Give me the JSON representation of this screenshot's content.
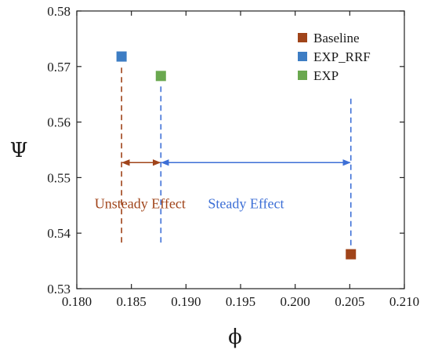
{
  "chart_data": {
    "type": "scatter",
    "xlabel": "ϕ",
    "ylabel": "Ψ",
    "xlim": [
      0.18,
      0.21
    ],
    "ylim": [
      0.53,
      0.58
    ],
    "xticks": [
      0.18,
      0.185,
      0.19,
      0.195,
      0.2,
      0.205,
      0.21
    ],
    "xtick_labels": [
      "0.180",
      "0.185",
      "0.190",
      "0.195",
      "0.200",
      "0.205",
      "0.210"
    ],
    "yticks": [
      0.53,
      0.54,
      0.55,
      0.56,
      0.57,
      0.58
    ],
    "ytick_labels": [
      "0.53",
      "0.54",
      "0.55",
      "0.56",
      "0.57",
      "0.58"
    ],
    "grid": false,
    "legend_position": "top-right",
    "series": [
      {
        "name": "Baseline",
        "color": "#a0441a",
        "points": [
          {
            "x": 0.2051,
            "y": 0.5362
          }
        ]
      },
      {
        "name": "EXP_RRF",
        "color": "#3d7dc4",
        "points": [
          {
            "x": 0.1841,
            "y": 0.5718
          }
        ]
      },
      {
        "name": "EXP",
        "color": "#6aa84f",
        "points": [
          {
            "x": 0.1877,
            "y": 0.5683
          }
        ]
      }
    ],
    "vertical_lines": [
      {
        "x": 0.1841,
        "y_from": 0.5383,
        "y_to": 0.5705,
        "color": "#a0441a"
      },
      {
        "x": 0.1877,
        "y_from": 0.5383,
        "y_to": 0.5665,
        "color": "#3d6fd6"
      },
      {
        "x": 0.2051,
        "y_from": 0.5378,
        "y_to": 0.5645,
        "color": "#3d6fd6"
      }
    ],
    "annotations": [
      {
        "text": "Unsteady Effect",
        "x_from": 0.1841,
        "x_to": 0.1877,
        "y": 0.5527,
        "label_x": 0.1858,
        "label_y": 0.5445,
        "color": "#a0441a"
      },
      {
        "text": "Steady Effect",
        "x_from": 0.1877,
        "x_to": 0.2051,
        "y": 0.5527,
        "label_x": 0.1955,
        "label_y": 0.5445,
        "color": "#3d6fd6"
      }
    ]
  }
}
